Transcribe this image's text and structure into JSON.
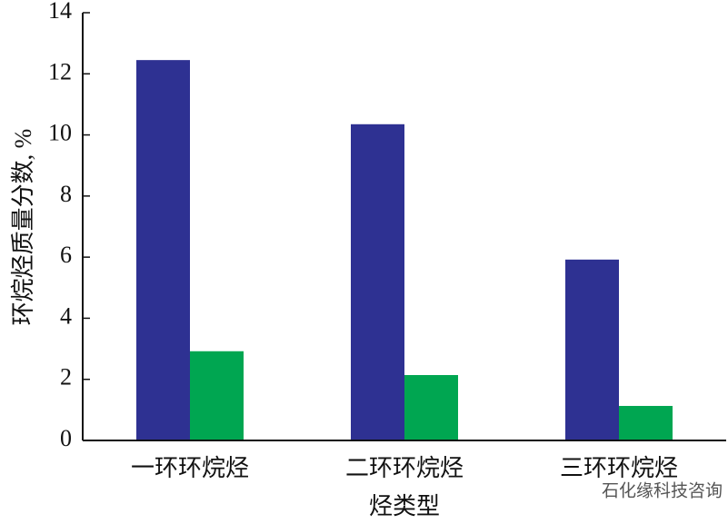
{
  "chart_data": {
    "type": "bar",
    "y_label": "环烷烃质量分数, %",
    "x_label": "烃类型",
    "categories": [
      "一环环烷烃",
      "二环环烷烃",
      "三环环烷烃"
    ],
    "series": [
      {
        "color": "#2e3192",
        "values": [
          12.45,
          10.35,
          5.92
        ]
      },
      {
        "color": "#00a651",
        "values": [
          2.92,
          2.14,
          1.13
        ]
      }
    ],
    "ylim": [
      0,
      14
    ],
    "yticks": [
      0,
      2,
      4,
      6,
      8,
      10,
      12,
      14
    ],
    "watermark": "石化缘科技咨询"
  }
}
